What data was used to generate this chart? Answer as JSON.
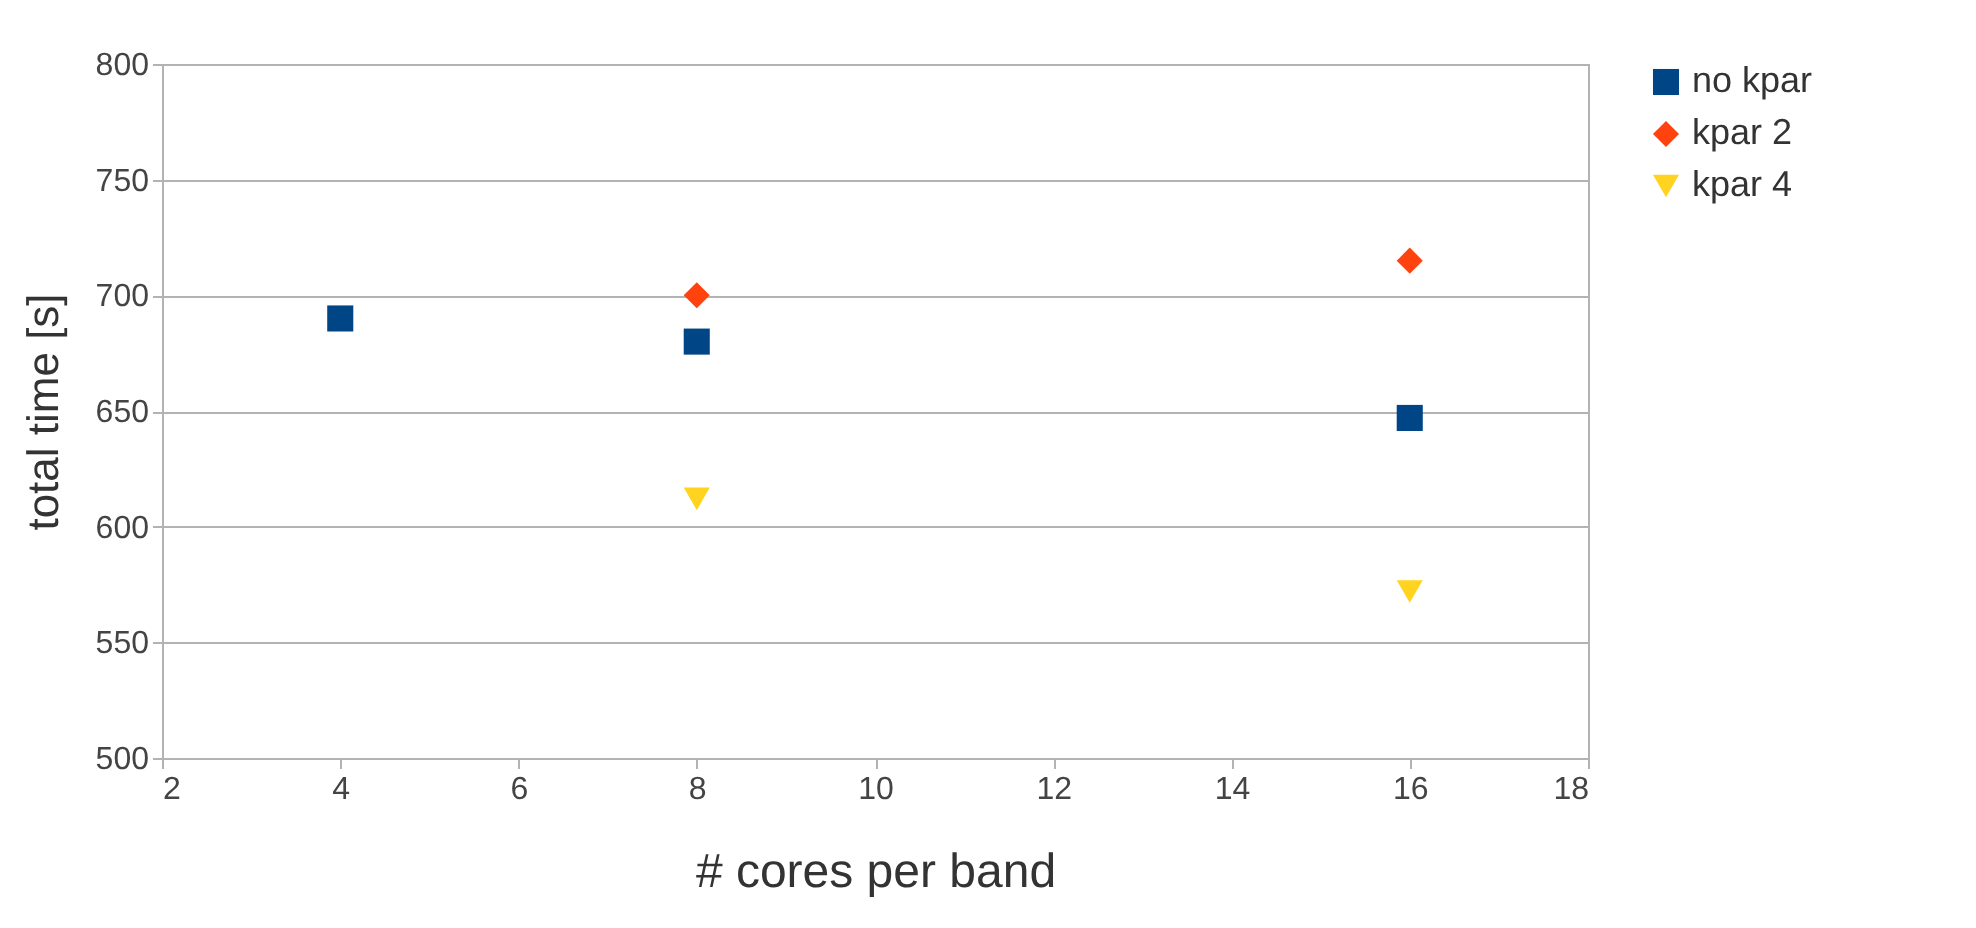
{
  "chart_data": {
    "type": "scatter",
    "xlabel": "# cores per band",
    "ylabel": "total time [s]",
    "xlim": [
      2,
      18
    ],
    "xticks": [
      2,
      4,
      6,
      8,
      10,
      12,
      14,
      16,
      18
    ],
    "ylim": [
      500,
      800
    ],
    "yticks": [
      500,
      550,
      600,
      650,
      700,
      750,
      800
    ],
    "grid": "y",
    "legend": "right",
    "series": [
      {
        "name": "no kpar",
        "color": "#004586",
        "marker": "square",
        "x": [
          4,
          8,
          16
        ],
        "values": [
          690,
          680,
          647
        ]
      },
      {
        "name": "kpar 2",
        "color": "#ff420e",
        "marker": "diamond",
        "x": [
          8,
          16
        ],
        "values": [
          700,
          715
        ]
      },
      {
        "name": "kpar 4",
        "color": "#ffd320",
        "marker": "triangle",
        "x": [
          8,
          16
        ],
        "values": [
          612,
          572
        ]
      }
    ]
  }
}
